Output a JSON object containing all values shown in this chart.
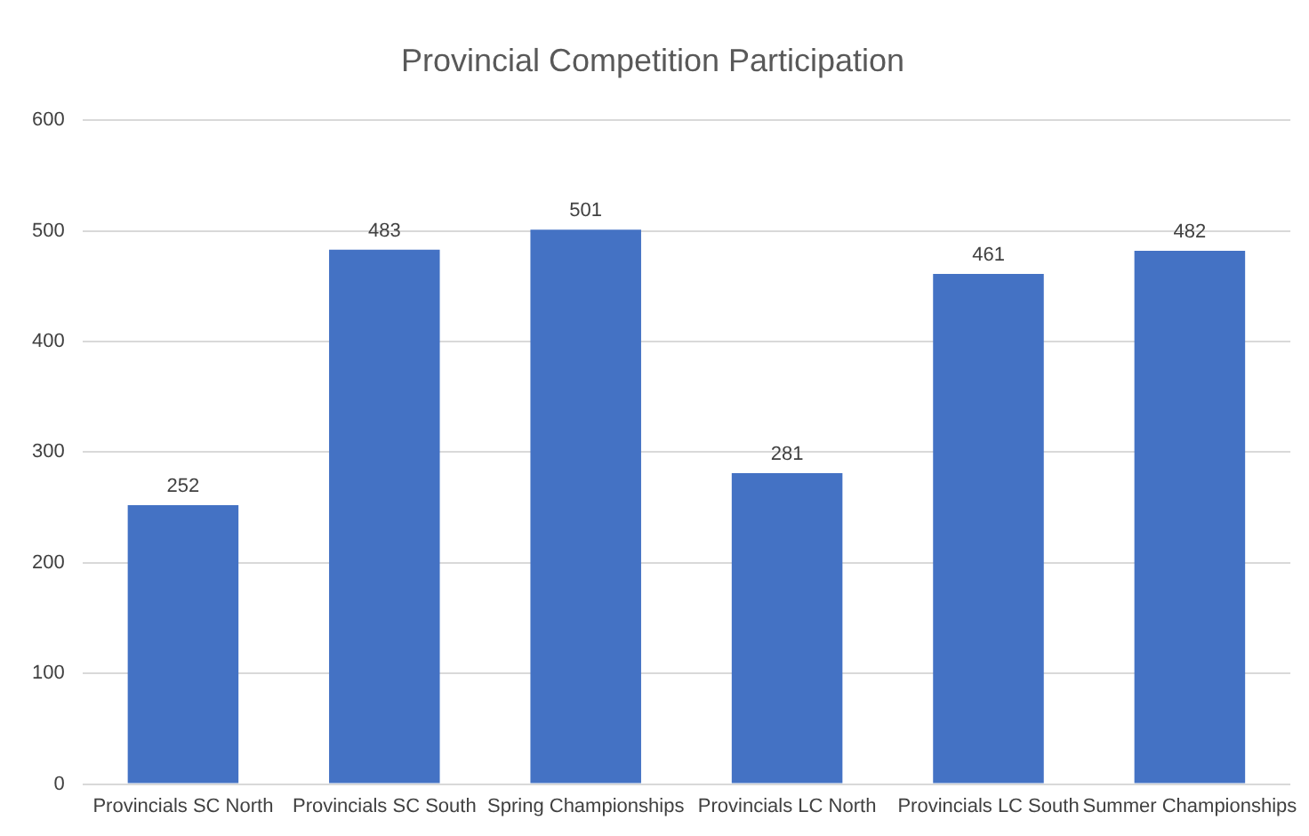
{
  "chart_data": {
    "type": "bar",
    "title": "Provincial Competition Participation",
    "categories": [
      "Provincials SC North",
      "Provincials SC South",
      "Spring Championships",
      "Provincials LC North",
      "Provincials LC South",
      "Summer Championships"
    ],
    "values": [
      252,
      483,
      501,
      281,
      461,
      482
    ],
    "color": "#4472c4",
    "ylim": [
      0,
      600
    ],
    "yticks": [
      0,
      100,
      200,
      300,
      400,
      500,
      600
    ],
    "grid": "y",
    "data_labels": true,
    "legend": false
  }
}
